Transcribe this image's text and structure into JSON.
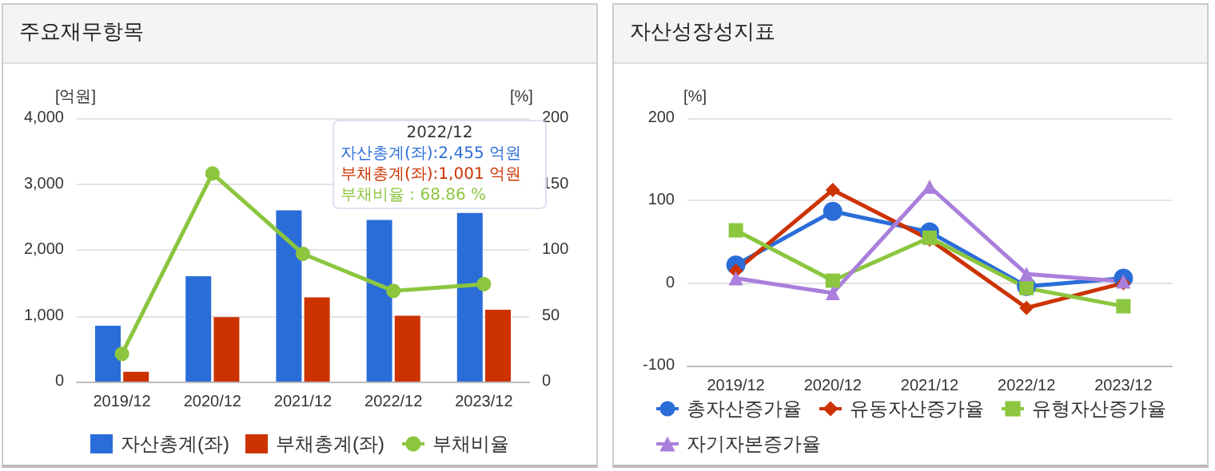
{
  "chart_data": [
    {
      "type": "bar",
      "title": "주요재무항목",
      "categories": [
        "2019/12",
        "2020/12",
        "2021/12",
        "2022/12",
        "2023/12"
      ],
      "ylabel": "[억원]",
      "y2label": "[%]",
      "series": [
        {
          "name": "자산총계(좌)",
          "color": "#2a6dd9",
          "values": [
            850,
            1600,
            2600,
            2455,
            2560
          ]
        },
        {
          "name": "부채총계(좌)",
          "color": "#cc3300",
          "values": [
            150,
            980,
            1280,
            1001,
            1090
          ]
        },
        {
          "name": "부채비율",
          "type": "line",
          "axis": "y2",
          "color": "#8cc63f",
          "marker": "circle",
          "values": [
            21,
            158,
            97,
            68.86,
            74
          ]
        }
      ],
      "ylim": [
        0,
        4000
      ],
      "yticks": [
        0,
        {
          "value": 1000,
          "label": "1,000"
        },
        {
          "value": 2000,
          "label": "2,000"
        },
        {
          "value": 3000,
          "label": "3,000"
        },
        {
          "value": 4000,
          "label": "4,000"
        }
      ],
      "y2lim": [
        0,
        200
      ],
      "y2ticks": [
        0,
        50,
        100,
        150,
        200
      ],
      "grid": "y",
      "legend": "bottom",
      "annotations": [
        "2022/12",
        "자산총계(좌):2,455 억원",
        "부채총계(좌):1,001 억원",
        "부채비율      :    68.86 %"
      ]
    },
    {
      "type": "line",
      "title": "자산성장성지표",
      "categories": [
        "2019/12",
        "2020/12",
        "2021/12",
        "2022/12",
        "2023/12"
      ],
      "ylabel": "[%]",
      "series": [
        {
          "name": "총자산증가율",
          "color": "#2a6dd9",
          "marker": "circle",
          "values": [
            22,
            87,
            62,
            -4,
            6
          ]
        },
        {
          "name": "유동자산증가율",
          "color": "#cc3300",
          "marker": "diamond",
          "values": [
            15,
            113,
            53,
            -30,
            0
          ]
        },
        {
          "name": "유형자산증가율",
          "color": "#8cc63f",
          "marker": "square",
          "values": [
            64,
            3,
            55,
            -6,
            -28
          ]
        },
        {
          "name": "자기자본증가율",
          "color": "#a97fdb",
          "marker": "triangle",
          "values": [
            6,
            -12,
            117,
            11,
            2
          ]
        }
      ],
      "ylim": [
        -100,
        200
      ],
      "yticks": [
        -100,
        0,
        100,
        200
      ],
      "grid": "y",
      "legend": "bottom"
    }
  ]
}
